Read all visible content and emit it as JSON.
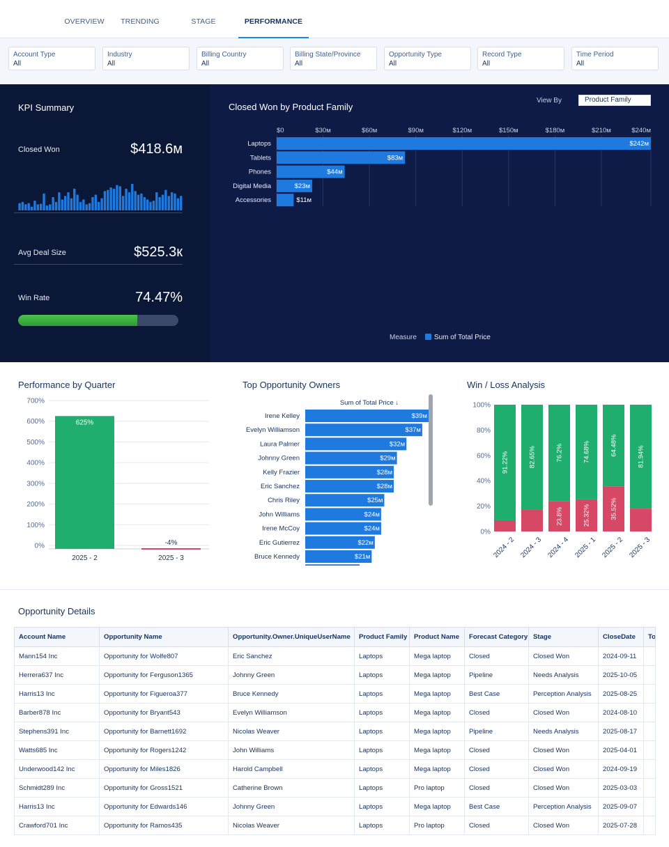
{
  "tabs": [
    "OVERVIEW",
    "TRENDING",
    "STAGE ANALYSIS",
    "PERFORMANCE"
  ],
  "active_tab": "PERFORMANCE",
  "filters": [
    {
      "label": "Account Type",
      "value": "All"
    },
    {
      "label": "Industry",
      "value": "All"
    },
    {
      "label": "Billing Country",
      "value": "All"
    },
    {
      "label": "Billing State/Province",
      "value": "All"
    },
    {
      "label": "Opportunity Type",
      "value": "All"
    },
    {
      "label": "Record Type",
      "value": "All"
    },
    {
      "label": "Time Period",
      "value": "All"
    }
  ],
  "kpi": {
    "title": "KPI Summary",
    "closed_won_label": "Closed Won",
    "closed_won_value": "$418.6м",
    "sparkline": [
      12,
      14,
      10,
      12,
      6,
      16,
      10,
      11,
      28,
      8,
      10,
      22,
      14,
      30,
      18,
      24,
      30,
      20,
      36,
      26,
      14,
      18,
      10,
      12,
      22,
      26,
      14,
      20,
      32,
      34,
      38,
      36,
      42,
      40,
      24,
      36,
      30,
      44,
      32,
      26,
      28,
      22,
      18,
      14,
      16,
      30,
      22,
      26,
      34,
      24,
      30,
      28,
      20,
      24
    ],
    "avg_deal_label": "Avg Deal Size",
    "avg_deal_value": "$525.3к",
    "win_rate_label": "Win Rate",
    "win_rate_value": "74.47%",
    "win_rate_pct": 74.47
  },
  "closed_won_chart": {
    "title": "Closed Won by Product Family",
    "view_by_label": "View By",
    "view_by_value": "Product Family",
    "measure_label": "Measure",
    "legend": "Sum of Total Price",
    "color": "#1f7ae0"
  },
  "perf_quarter": {
    "title": "Performance by Quarter",
    "color_pos": "#1fae6e",
    "color_neg": "#d74766"
  },
  "top_owners": {
    "title": "Top Opportunity Owners",
    "header": "Sum of Total Price ↓",
    "color": "#1f7ae0"
  },
  "win_loss": {
    "title": "Win / Loss Analysis",
    "win_color": "#1fae6e",
    "loss_color": "#d74766"
  },
  "chart_data": [
    {
      "type": "bar",
      "orientation": "horizontal",
      "title": "Closed Won by Product Family",
      "categories": [
        "Laptops",
        "Tablets",
        "Phones",
        "Digital Media",
        "Accessories"
      ],
      "values": [
        242,
        83,
        44,
        23,
        11
      ],
      "labels": [
        "$242м",
        "$83м",
        "$44м",
        "$23м",
        "$11м"
      ],
      "xticks": [
        "$0",
        "$30м",
        "$60м",
        "$90м",
        "$120м",
        "$150м",
        "$180м",
        "$210м",
        "$240м"
      ],
      "xlim": [
        0,
        242
      ],
      "unit": "M"
    },
    {
      "type": "bar",
      "title": "Performance by Quarter",
      "categories": [
        "2025 - 2",
        "2025 - 3"
      ],
      "values": [
        625,
        -4
      ],
      "labels": [
        "625%",
        "-4%"
      ],
      "yticks": [
        "0%",
        "100%",
        "200%",
        "300%",
        "400%",
        "500%",
        "600%",
        "700%"
      ],
      "ylim": [
        0,
        700
      ]
    },
    {
      "type": "bar",
      "orientation": "horizontal",
      "title": "Top Opportunity Owners",
      "categories": [
        "Irene Kelley",
        "Evelyn Williamson",
        "Laura Palmer",
        "Johnny Green",
        "Kelly Frazier",
        "Eric Sanchez",
        "Chris Riley",
        "John Williams",
        "Irene McCoy",
        "Eric Gutierrez",
        "Bruce Kennedy"
      ],
      "values": [
        39,
        37,
        32,
        29,
        28,
        28,
        25,
        24,
        24,
        22,
        21
      ],
      "labels": [
        "$39м",
        "$37м",
        "$32м",
        "$29м",
        "$28м",
        "$28м",
        "$25м",
        "$24м",
        "$24м",
        "$22м",
        "$21м"
      ],
      "xlim": [
        0,
        39
      ]
    },
    {
      "type": "bar",
      "stacked": true,
      "title": "Win / Loss Analysis",
      "categories": [
        "2024 - 2",
        "2024 - 3",
        "2024 - 4",
        "2025 - 1",
        "2025 - 2",
        "2025 - 3"
      ],
      "series": [
        {
          "name": "Win",
          "values": [
            91.22,
            82.65,
            76.2,
            74.68,
            64.48,
            81.94
          ],
          "labels": [
            "91.22%",
            "82.65%",
            "76.2%",
            "74.68%",
            "64.48%",
            "81.94%"
          ]
        },
        {
          "name": "Loss",
          "values": [
            8.78,
            17.35,
            23.8,
            25.32,
            35.52,
            18.06
          ],
          "labels": [
            "",
            "",
            "23.8%",
            "25.32%",
            "35.52%",
            ""
          ]
        }
      ],
      "yticks": [
        "0%",
        "20%",
        "40%",
        "60%",
        "80%",
        "100%"
      ],
      "ylim": [
        0,
        100
      ]
    }
  ],
  "table": {
    "title": "Opportunity Details",
    "columns": [
      "Account Name",
      "Opportunity Name",
      "Opportunity.Owner.UniqueUserName",
      "Product Family",
      "Product Name",
      "Forecast Category",
      "Stage",
      "CloseDate",
      "To"
    ],
    "rows": [
      [
        "Mann154 Inc",
        "Opportunity for Wolfe807",
        "Eric Sanchez",
        "Laptops",
        "Mega laptop",
        "Closed",
        "Closed Won",
        "2024-09-11",
        ""
      ],
      [
        "Herrera637 Inc",
        "Opportunity for Ferguson1365",
        "Johnny Green",
        "Laptops",
        "Mega laptop",
        "Pipeline",
        "Needs Analysis",
        "2025-10-05",
        ""
      ],
      [
        "Harris13 Inc",
        "Opportunity for Figueroa377",
        "Bruce Kennedy",
        "Laptops",
        "Mega laptop",
        "Best Case",
        "Perception Analysis",
        "2025-08-25",
        ""
      ],
      [
        "Barber878 Inc",
        "Opportunity for Bryant543",
        "Evelyn Williamson",
        "Laptops",
        "Mega laptop",
        "Closed",
        "Closed Won",
        "2024-08-10",
        ""
      ],
      [
        "Stephens391 Inc",
        "Opportunity for Barnett1692",
        "Nicolas Weaver",
        "Laptops",
        "Mega laptop",
        "Pipeline",
        "Needs Analysis",
        "2025-08-17",
        ""
      ],
      [
        "Watts685 Inc",
        "Opportunity for Rogers1242",
        "John Williams",
        "Laptops",
        "Mega laptop",
        "Closed",
        "Closed Won",
        "2025-04-01",
        ""
      ],
      [
        "Underwood142 Inc",
        "Opportunity for Miles1826",
        "Harold Campbell",
        "Laptops",
        "Mega laptop",
        "Closed",
        "Closed Won",
        "2024-09-19",
        ""
      ],
      [
        "Schmidt289 Inc",
        "Opportunity for Gross1521",
        "Catherine Brown",
        "Laptops",
        "Pro laptop",
        "Closed",
        "Closed Won",
        "2025-03-03",
        ""
      ],
      [
        "Harris13 Inc",
        "Opportunity for Edwards146",
        "Johnny Green",
        "Laptops",
        "Mega laptop",
        "Best Case",
        "Perception Analysis",
        "2025-09-07",
        ""
      ],
      [
        "Crawford701 Inc",
        "Opportunity for Ramos435",
        "Nicolas Weaver",
        "Laptops",
        "Pro laptop",
        "Closed",
        "Closed Won",
        "2025-07-28",
        ""
      ]
    ]
  }
}
